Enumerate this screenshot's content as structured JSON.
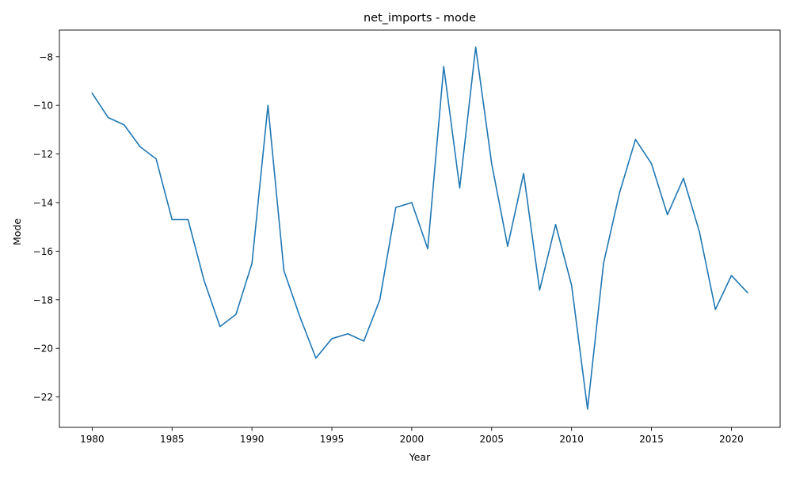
{
  "chart_data": {
    "type": "line",
    "title": "net_imports - mode",
    "xlabel": "Year",
    "ylabel": "Mode",
    "xlim": [
      1977.95,
      2023.05
    ],
    "ylim": [
      -23.25,
      -6.9
    ],
    "xticks": [
      1980,
      1985,
      1990,
      1995,
      2000,
      2005,
      2010,
      2015,
      2020
    ],
    "yticks": [
      -22,
      -20,
      -18,
      -16,
      -14,
      -12,
      -10,
      -8
    ],
    "grid": false,
    "series": [
      {
        "color": "#1f77b4",
        "x": [
          1980,
          1981,
          1982,
          1983,
          1984,
          1985,
          1986,
          1987,
          1988,
          1989,
          1990,
          1991,
          1992,
          1993,
          1994,
          1995,
          1996,
          1997,
          1998,
          1999,
          2000,
          2001,
          2002,
          2003,
          2004,
          2005,
          2006,
          2007,
          2008,
          2009,
          2010,
          2011,
          2012,
          2013,
          2014,
          2015,
          2016,
          2017,
          2018,
          2019,
          2020,
          2021
        ],
        "y": [
          -9.5,
          -10.5,
          -10.8,
          -11.7,
          -12.2,
          -14.7,
          -14.7,
          -17.2,
          -19.1,
          -18.6,
          -16.5,
          -10.0,
          -16.8,
          -18.7,
          -20.4,
          -19.6,
          -19.4,
          -19.7,
          -18.0,
          -14.2,
          -14.0,
          -15.9,
          -8.4,
          -13.4,
          -7.6,
          -12.4,
          -15.8,
          -12.8,
          -17.6,
          -14.9,
          -17.4,
          -22.5,
          -16.5,
          -13.6,
          -11.4,
          -12.4,
          -14.5,
          -13.0,
          -15.2,
          -18.4,
          -17.0,
          -17.7
        ]
      }
    ]
  }
}
